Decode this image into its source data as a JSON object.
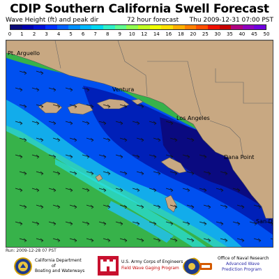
{
  "header": {
    "title": "CDIP Southern California Swell Forecast",
    "wave_height_label": "Wave Height (ft) and peak dir",
    "forecast_label": "72 hour forecast",
    "valid_time": "Thu 2009-12-31 07:00 PST"
  },
  "scale": {
    "labels": [
      "0",
      "1",
      "2",
      "3",
      "4",
      "5",
      "6",
      "7",
      "8",
      "9",
      "10",
      "12",
      "14",
      "16",
      "18",
      "20",
      "25",
      "30",
      "35",
      "40",
      "45",
      "50"
    ],
    "colors": [
      "#0a0a78",
      "#0000b0",
      "#0010d8",
      "#0030ff",
      "#0060ff",
      "#0090ff",
      "#00b8ff",
      "#00d8f0",
      "#30f0c8",
      "#60ff90",
      "#90ff50",
      "#c0ff20",
      "#f0ff00",
      "#ffe000",
      "#ffb000",
      "#ff8000",
      "#ff5000",
      "#f01000",
      "#c80000",
      "#b00080",
      "#9000c0",
      "#7000e0"
    ]
  },
  "map": {
    "place_labels": {
      "pt_arguello": "Pt. Arguello",
      "ventura": "Ventura",
      "los_angeles": "Los Angeles",
      "dana_point": "Dana Point",
      "san_diego": "San D"
    },
    "arrow_direction": "east-southeast",
    "land_color": "#c8a882",
    "land_border_color": "#555555"
  },
  "run_info": "Run: 2009-12-28 07 PST",
  "logos": {
    "california": {
      "line1": "California Department",
      "line2": "of",
      "line3": "Boating and Waterways",
      "seal_icon": "california-seal-icon"
    },
    "army": {
      "line1": "U.S. Army Corps of Engineers",
      "line2": "Field Wave Gaging Program",
      "castle_icon": "army-corps-castle-icon"
    },
    "navy": {
      "line1": "Office of Naval Research",
      "line2": "Advanced Wave",
      "line3": "Prediction Program",
      "seal_icon": "navy-seal-icon"
    }
  }
}
